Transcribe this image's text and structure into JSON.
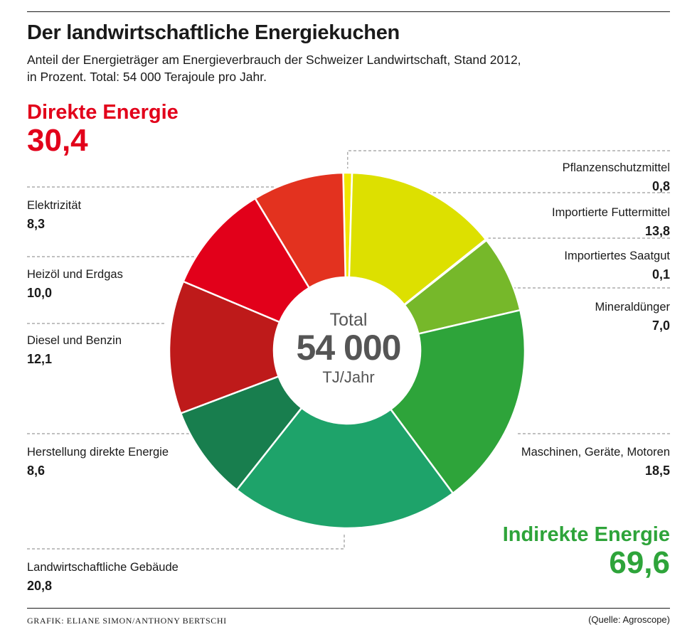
{
  "header": {
    "title": "Der landwirtschaftliche Energiekuchen",
    "subtitle_line1": "Anteil der Energieträger am Energieverbrauch der Schweizer Landwirtschaft, Stand 2012,",
    "subtitle_line2": "in Prozent. Total: 54 000 Terajoule pro Jahr."
  },
  "groups": {
    "direct": {
      "label": "Direkte Energie",
      "value": "30,4",
      "color": "#e2001a"
    },
    "indirect": {
      "label": "Indirekte Energie",
      "value": "69,6",
      "color": "#2ea43a"
    }
  },
  "center": {
    "top": "Total",
    "value": "54 000",
    "unit": "TJ/Jahr"
  },
  "chart_data": {
    "type": "pie",
    "variant": "donut",
    "title": "Der landwirtschaftliche Energiekuchen",
    "unit": "Prozent",
    "slices": [
      {
        "name": "Pflanzenschutzmittel",
        "value": 0.8,
        "display": "0,8",
        "group": "indirect",
        "color": "#f2e600"
      },
      {
        "name": "Importierte Futtermittel",
        "value": 13.8,
        "display": "13,8",
        "group": "indirect",
        "color": "#dde000"
      },
      {
        "name": "Importiertes Saatgut",
        "value": 0.1,
        "display": "0,1",
        "group": "indirect",
        "color": "#b5d21e"
      },
      {
        "name": "Mineraldünger",
        "value": 7.0,
        "display": "7,0",
        "group": "indirect",
        "color": "#76b82a"
      },
      {
        "name": "Maschinen, Geräte, Motoren",
        "value": 18.5,
        "display": "18,5",
        "group": "indirect",
        "color": "#2ea43a"
      },
      {
        "name": "Landwirtschaftliche Gebäude",
        "value": 20.8,
        "display": "20,8",
        "group": "indirect",
        "color": "#1ea36a"
      },
      {
        "name": "Herstellung direkte Energie",
        "value": 8.6,
        "display": "8,6",
        "group": "indirect",
        "color": "#187e4e"
      },
      {
        "name": "Diesel und Benzin",
        "value": 12.1,
        "display": "12,1",
        "group": "direct",
        "color": "#be1a1a"
      },
      {
        "name": "Heizöl und Erdgas",
        "value": 10.0,
        "display": "10,0",
        "group": "direct",
        "color": "#e2001a"
      },
      {
        "name": "Elektrizität",
        "value": 8.3,
        "display": "8,3",
        "group": "direct",
        "color": "#e3321f"
      }
    ]
  },
  "footer": {
    "credit": "GRAFIK: ELIANE SIMON/ANTHONY BERTSCHI",
    "source": "(Quelle: Agroscope)"
  }
}
